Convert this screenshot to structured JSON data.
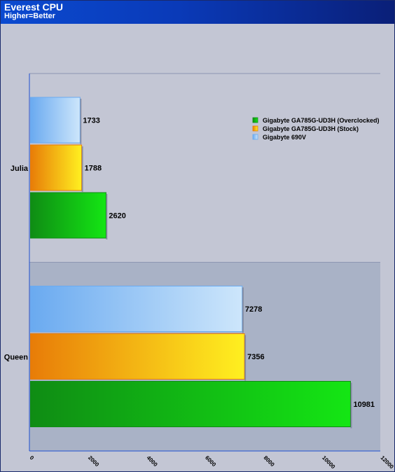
{
  "header": {
    "title": "Everest CPU",
    "subtitle": "Higher=Better"
  },
  "colors": {
    "header_start": "#0b4ad0",
    "header_end": "#0a1f78",
    "plot_band_light": "#c3c6d4",
    "plot_band_dark": "#a9b2c6"
  },
  "chart_data": {
    "type": "bar",
    "orientation": "horizontal",
    "title": "Everest CPU",
    "subtitle": "Higher=Better",
    "categories": [
      "Julia",
      "Queen"
    ],
    "series": [
      {
        "name": "Gigabyte 690V",
        "values": [
          1733,
          7278
        ],
        "color_light": "#cde6fb",
        "color_dark": "#6aaaf0"
      },
      {
        "name": "Gigabyte GA785G-UD3H (Stock)",
        "values": [
          1788,
          7356
        ],
        "color_light": "#fff020",
        "color_dark": "#e87c08"
      },
      {
        "name": "Gigabyte GA785G-UD3H (Overclocked)",
        "values": [
          2620,
          10981
        ],
        "color_light": "#14e614",
        "color_dark": "#0f8c14"
      }
    ],
    "legend_order": [
      "Gigabyte GA785G-UD3H (Overclocked)",
      "Gigabyte GA785G-UD3H (Stock)",
      "Gigabyte 690V"
    ],
    "legend_position": "top-right",
    "xlim": [
      0,
      12000
    ],
    "xticks": [
      0,
      2000,
      4000,
      6000,
      8000,
      10000,
      12000
    ],
    "xtick_labels": [
      "0",
      "2000",
      "4000",
      "6000",
      "8000",
      "10000",
      "12000"
    ],
    "grid": false,
    "data_labels": true
  }
}
